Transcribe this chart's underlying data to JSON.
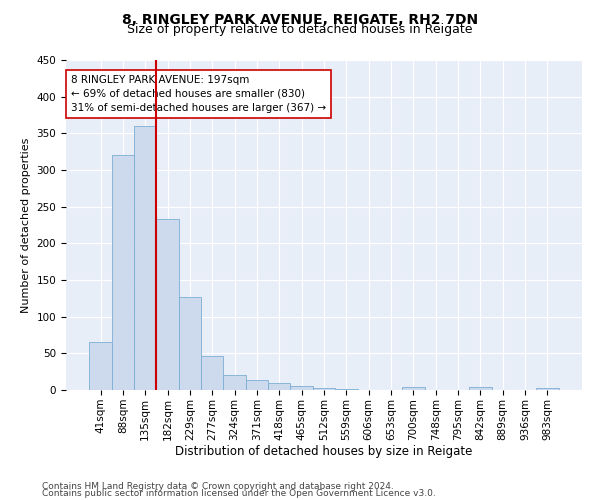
{
  "title": "8, RINGLEY PARK AVENUE, REIGATE, RH2 7DN",
  "subtitle": "Size of property relative to detached houses in Reigate",
  "xlabel": "Distribution of detached houses by size in Reigate",
  "ylabel": "Number of detached properties",
  "categories": [
    "41sqm",
    "88sqm",
    "135sqm",
    "182sqm",
    "229sqm",
    "277sqm",
    "324sqm",
    "371sqm",
    "418sqm",
    "465sqm",
    "512sqm",
    "559sqm",
    "606sqm",
    "653sqm",
    "700sqm",
    "748sqm",
    "795sqm",
    "842sqm",
    "889sqm",
    "936sqm",
    "983sqm"
  ],
  "values": [
    65,
    320,
    360,
    233,
    127,
    46,
    21,
    13,
    9,
    5,
    3,
    1,
    0,
    0,
    4,
    0,
    0,
    4,
    0,
    0,
    3
  ],
  "bar_color": "#cdd9ed",
  "bar_edge_color": "#7bafd4",
  "vline_x_index": 3,
  "vline_color": "#cc0000",
  "annotation_line1": "8 RINGLEY PARK AVENUE: 197sqm",
  "annotation_line2": "← 69% of detached houses are smaller (830)",
  "annotation_line3": "31% of semi-detached houses are larger (367) →",
  "annotation_box_color": "white",
  "annotation_box_edge": "#cc0000",
  "ylim": [
    0,
    450
  ],
  "yticks": [
    0,
    50,
    100,
    150,
    200,
    250,
    300,
    350,
    400,
    450
  ],
  "bg_color": "#e8eef8",
  "grid_color": "white",
  "footer1": "Contains HM Land Registry data © Crown copyright and database right 2024.",
  "footer2": "Contains public sector information licensed under the Open Government Licence v3.0.",
  "title_fontsize": 10,
  "subtitle_fontsize": 9,
  "xlabel_fontsize": 8.5,
  "ylabel_fontsize": 8,
  "tick_fontsize": 7.5,
  "annotation_fontsize": 7.5,
  "footer_fontsize": 6.5
}
